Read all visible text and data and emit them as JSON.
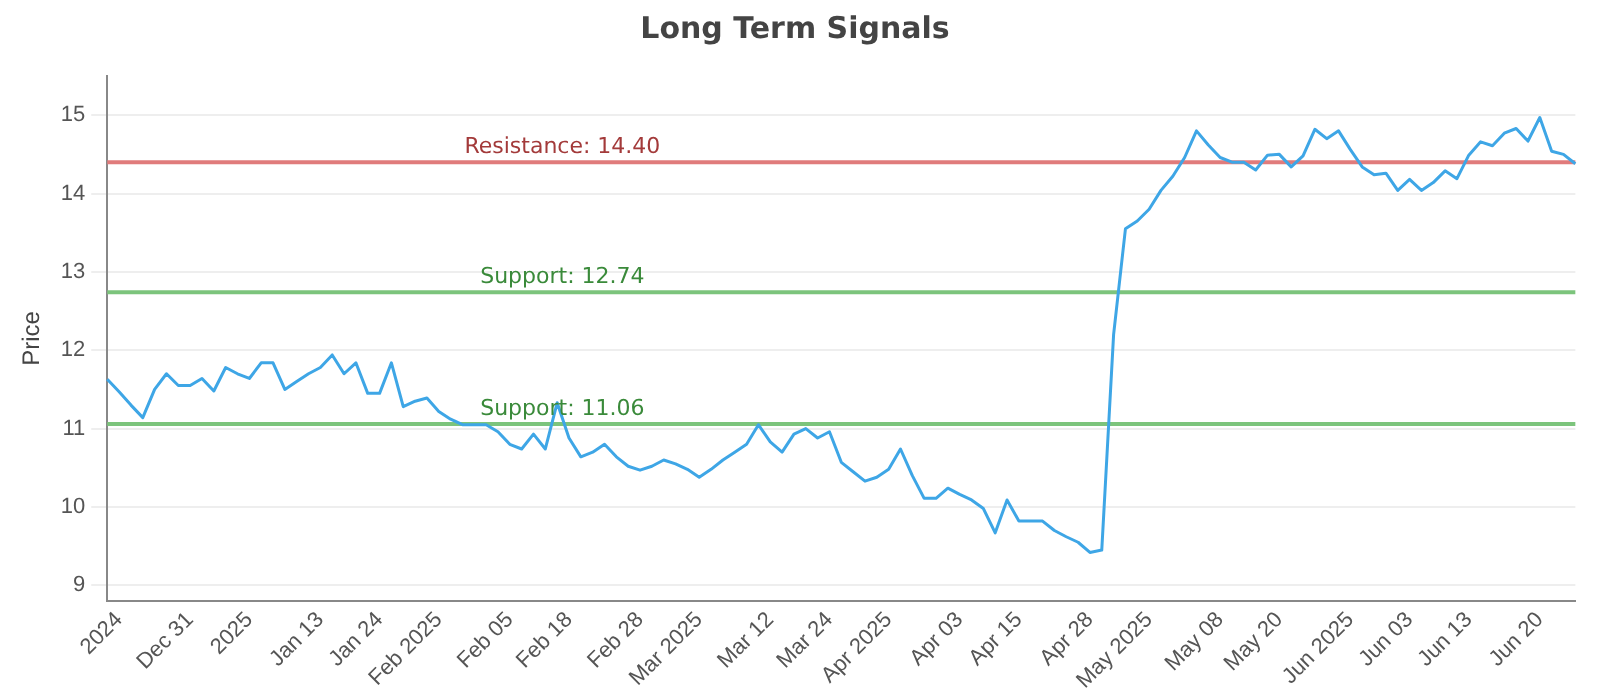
{
  "chart_data": {
    "type": "line",
    "title": "Long Term Signals",
    "ylabel": "Price",
    "categories": [
      null,
      "2024",
      null,
      null,
      null,
      null,
      null,
      "Dec 31",
      null,
      null,
      null,
      null,
      "2025",
      null,
      null,
      null,
      null,
      null,
      "Jan 13",
      null,
      null,
      null,
      null,
      "Jan 24",
      null,
      null,
      null,
      null,
      "Feb 2025",
      null,
      null,
      null,
      null,
      null,
      "Feb 05",
      null,
      null,
      null,
      null,
      "Feb 18",
      null,
      null,
      null,
      null,
      null,
      "Feb 28",
      null,
      null,
      null,
      null,
      "Mar 2025",
      null,
      null,
      null,
      null,
      null,
      "Mar 12",
      null,
      null,
      null,
      null,
      "Mar 24",
      null,
      null,
      null,
      null,
      "Apr 2025",
      null,
      null,
      null,
      null,
      null,
      "Apr 03",
      null,
      null,
      null,
      null,
      "Apr 15",
      null,
      null,
      null,
      null,
      null,
      "Apr 28",
      null,
      null,
      null,
      null,
      "May 2025",
      null,
      null,
      null,
      null,
      null,
      "May 08",
      null,
      null,
      null,
      null,
      "May 20",
      null,
      null,
      null,
      null,
      null,
      "Jun 2025",
      null,
      null,
      null,
      null,
      "Jun 03",
      null,
      null,
      null,
      null,
      "Jun 13",
      null,
      null,
      null,
      null,
      null,
      "Jun 20",
      null,
      null,
      null
    ],
    "series": [
      {
        "color": "#3ea6e6",
        "values": [
          11.63,
          11.47,
          11.3,
          11.14,
          11.5,
          11.7,
          11.55,
          11.55,
          11.64,
          11.48,
          11.78,
          11.7,
          11.64,
          11.84,
          11.84,
          11.5,
          11.6,
          11.7,
          11.78,
          11.94,
          11.7,
          11.84,
          11.45,
          11.45,
          11.84,
          11.28,
          11.35,
          11.39,
          11.22,
          11.12,
          11.05,
          11.05,
          11.05,
          10.96,
          10.8,
          10.74,
          10.93,
          10.74,
          11.33,
          10.88,
          10.64,
          10.7,
          10.8,
          10.64,
          10.52,
          10.47,
          10.52,
          10.6,
          10.55,
          10.48,
          10.38,
          10.48,
          10.6,
          10.7,
          10.8,
          11.05,
          10.83,
          10.7,
          10.93,
          11.0,
          10.88,
          10.96,
          10.57,
          10.45,
          10.33,
          10.38,
          10.48,
          10.74,
          10.4,
          10.11,
          10.11,
          10.24,
          10.16,
          10.09,
          9.98,
          9.67,
          10.09,
          9.82,
          9.82,
          9.82,
          9.7,
          9.62,
          9.55,
          9.42,
          9.45,
          12.2,
          13.55,
          13.65,
          13.8,
          14.04,
          14.22,
          14.46,
          14.8,
          14.62,
          14.46,
          14.4,
          14.4,
          14.3,
          14.49,
          14.5,
          14.34,
          14.48,
          14.82,
          14.7,
          14.8,
          14.56,
          14.34,
          14.24,
          14.26,
          14.04,
          14.18,
          14.04,
          14.14,
          14.29,
          14.19,
          14.49,
          14.66,
          14.61,
          14.77,
          14.83,
          14.67,
          14.97,
          14.54,
          14.5,
          14.38
        ]
      }
    ],
    "ylim": [
      8.8,
      15.5
    ],
    "yticks": [
      9,
      10,
      11,
      12,
      13,
      14,
      15
    ],
    "grid": "y",
    "legend": false,
    "marker": "none",
    "line_style": "solid",
    "ref_lines": [
      {
        "axis": "y",
        "value": 14.4,
        "label": "Resistance: 14.40",
        "color": "#e07b7b"
      },
      {
        "axis": "y",
        "value": 12.74,
        "label": "Support: 12.74",
        "color": "#7cc47c"
      },
      {
        "axis": "y",
        "value": 11.06,
        "label": "Support: 11.06",
        "color": "#7cc47c"
      }
    ]
  }
}
